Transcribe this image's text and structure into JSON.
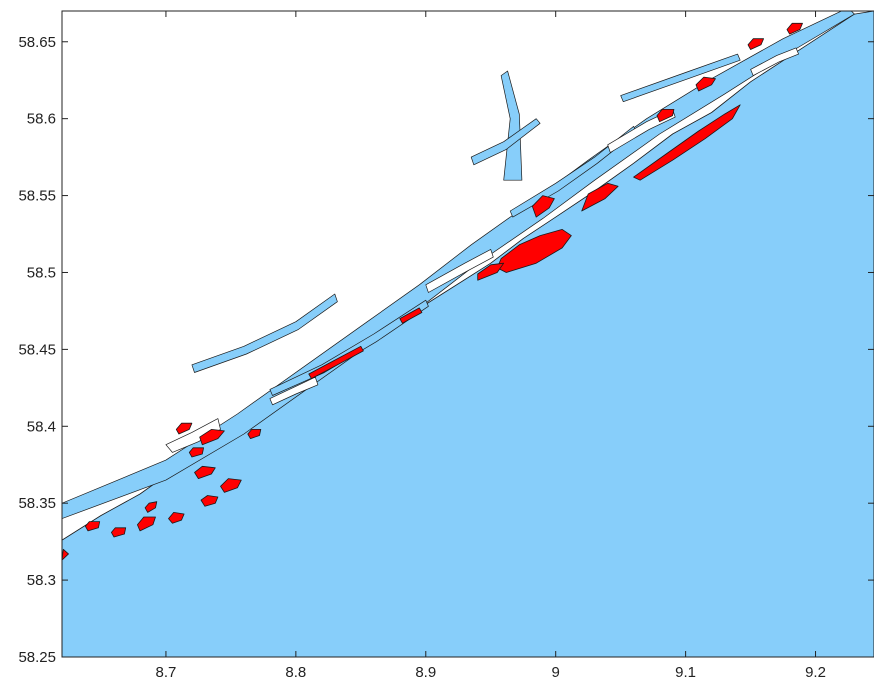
{
  "chart_data": {
    "type": "map",
    "title": "",
    "xlabel": "",
    "ylabel": "",
    "xlim": [
      8.62,
      9.245
    ],
    "ylim": [
      58.25,
      58.67
    ],
    "x_ticks": [
      8.7,
      8.8,
      8.9,
      9.0,
      9.1,
      9.2
    ],
    "x_tick_labels": [
      "8.7",
      "8.8",
      "8.9",
      "9",
      "9.1",
      "9.2"
    ],
    "y_ticks": [
      58.25,
      58.3,
      58.35,
      58.4,
      58.45,
      58.5,
      58.55,
      58.6,
      58.65
    ],
    "y_tick_labels": [
      "58.25",
      "58.3",
      "58.35",
      "58.4",
      "58.45",
      "58.5",
      "58.55",
      "58.6",
      "58.65"
    ],
    "grid": false,
    "legend": "none",
    "layers": {
      "sea": {
        "color": "#87CEFA",
        "outline": [
          [
            8.62,
            58.25
          ],
          [
            9.245,
            58.25
          ],
          [
            9.245,
            58.67
          ],
          [
            9.23,
            58.668
          ],
          [
            9.19,
            58.646
          ],
          [
            9.15,
            58.624
          ],
          [
            9.12,
            58.604
          ],
          [
            9.09,
            58.59
          ],
          [
            9.06,
            58.571
          ],
          [
            9.03,
            58.553
          ],
          [
            9.0,
            58.536
          ],
          [
            8.975,
            58.522
          ],
          [
            8.95,
            58.506
          ],
          [
            8.92,
            58.49
          ],
          [
            8.89,
            58.474
          ],
          [
            8.86,
            58.456
          ],
          [
            8.83,
            58.44
          ],
          [
            8.8,
            58.424
          ],
          [
            8.77,
            58.406
          ],
          [
            8.74,
            58.392
          ],
          [
            8.71,
            58.374
          ],
          [
            8.68,
            58.356
          ],
          [
            8.65,
            58.342
          ],
          [
            8.62,
            58.326
          ]
        ]
      },
      "inland_water": {
        "color": "#87CEFA",
        "fjords": [
          [
            [
              8.62,
              58.34
            ],
            [
              8.7,
              58.365
            ],
            [
              8.76,
              58.395
            ],
            [
              8.81,
              58.425
            ],
            [
              8.86,
              58.455
            ],
            [
              8.9,
              58.48
            ],
            [
              8.94,
              58.506
            ],
            [
              8.99,
              58.535
            ],
            [
              9.03,
              58.56
            ],
            [
              9.08,
              58.59
            ],
            [
              9.13,
              58.616
            ],
            [
              9.18,
              58.643
            ],
            [
              9.23,
              58.668
            ],
            [
              9.225,
              58.672
            ],
            [
              9.175,
              58.652
            ],
            [
              9.12,
              58.626
            ],
            [
              9.07,
              58.6
            ],
            [
              9.025,
              58.573
            ],
            [
              8.985,
              58.548
            ],
            [
              8.935,
              58.518
            ],
            [
              8.895,
              58.492
            ],
            [
              8.855,
              58.468
            ],
            [
              8.805,
              58.438
            ],
            [
              8.755,
              58.408
            ],
            [
              8.7,
              58.378
            ],
            [
              8.62,
              58.35
            ]
          ],
          [
            [
              8.96,
              58.56
            ],
            [
              8.965,
              58.6
            ],
            [
              8.958,
              58.628
            ],
            [
              8.963,
              58.631
            ],
            [
              8.972,
              58.603
            ],
            [
              8.974,
              58.56
            ]
          ],
          [
            [
              8.935,
              58.575
            ],
            [
              8.96,
              58.585
            ],
            [
              8.985,
              58.6
            ],
            [
              8.988,
              58.597
            ],
            [
              8.962,
              58.58
            ],
            [
              8.937,
              58.57
            ]
          ],
          [
            [
              8.965,
              58.54
            ],
            [
              9.0,
              58.558
            ],
            [
              9.03,
              58.575
            ],
            [
              9.06,
              58.595
            ],
            [
              9.062,
              58.591
            ],
            [
              9.032,
              58.571
            ],
            [
              9.002,
              58.553
            ],
            [
              8.967,
              58.536
            ]
          ],
          [
            [
              9.05,
              58.615
            ],
            [
              9.1,
              58.63
            ],
            [
              9.14,
              58.642
            ],
            [
              9.142,
              58.638
            ],
            [
              9.102,
              58.626
            ],
            [
              9.052,
              58.611
            ]
          ],
          [
            [
              8.72,
              58.44
            ],
            [
              8.76,
              58.452
            ],
            [
              8.8,
              58.468
            ],
            [
              8.83,
              58.486
            ],
            [
              8.832,
              58.481
            ],
            [
              8.802,
              58.463
            ],
            [
              8.762,
              58.447
            ],
            [
              8.722,
              58.435
            ]
          ],
          [
            [
              8.78,
              58.424
            ],
            [
              8.82,
              58.44
            ],
            [
              8.86,
              58.46
            ],
            [
              8.9,
              58.482
            ],
            [
              8.902,
              58.478
            ],
            [
              8.862,
              58.455
            ],
            [
              8.822,
              58.435
            ],
            [
              8.782,
              58.42
            ]
          ]
        ]
      },
      "highlighted_areas": {
        "color": "#FF0000",
        "areas": [
          [
            [
              9.06,
              58.562
            ],
            [
              9.085,
              58.577
            ],
            [
              9.11,
              58.592
            ],
            [
              9.13,
              58.603
            ],
            [
              9.142,
              58.609
            ],
            [
              9.136,
              58.6
            ],
            [
              9.115,
              58.587
            ],
            [
              9.09,
              58.573
            ],
            [
              9.065,
              58.56
            ]
          ],
          [
            [
              8.962,
              58.5
            ],
            [
              8.985,
              58.506
            ],
            [
              9.005,
              58.516
            ],
            [
              9.012,
              58.524
            ],
            [
              9.005,
              58.528
            ],
            [
              8.988,
              58.524
            ],
            [
              8.972,
              58.518
            ],
            [
              8.958,
              58.509
            ],
            [
              8.955,
              58.503
            ]
          ],
          [
            [
              8.94,
              58.495
            ],
            [
              8.955,
              58.5
            ],
            [
              8.96,
              58.506
            ],
            [
              8.95,
              58.505
            ],
            [
              8.94,
              58.499
            ]
          ],
          [
            [
              8.985,
              58.536
            ],
            [
              8.995,
              58.542
            ],
            [
              8.999,
              58.548
            ],
            [
              8.99,
              58.55
            ],
            [
              8.982,
              58.543
            ]
          ],
          [
            [
              9.02,
              58.54
            ],
            [
              9.038,
              58.548
            ],
            [
              9.048,
              58.556
            ],
            [
              9.04,
              58.558
            ],
            [
              9.025,
              58.551
            ]
          ],
          [
            [
              8.745,
              58.357
            ],
            [
              8.755,
              58.36
            ],
            [
              8.758,
              58.365
            ],
            [
              8.748,
              58.366
            ],
            [
              8.742,
              58.361
            ]
          ],
          [
            [
              8.725,
              58.366
            ],
            [
              8.735,
              58.369
            ],
            [
              8.738,
              58.373
            ],
            [
              8.728,
              58.374
            ],
            [
              8.722,
              58.37
            ]
          ],
          [
            [
              8.728,
              58.388
            ],
            [
              8.74,
              58.392
            ],
            [
              8.745,
              58.397
            ],
            [
              8.735,
              58.398
            ],
            [
              8.726,
              58.393
            ]
          ],
          [
            [
              8.73,
              58.348
            ],
            [
              8.738,
              58.35
            ],
            [
              8.74,
              58.354
            ],
            [
              8.732,
              58.355
            ],
            [
              8.727,
              58.352
            ]
          ],
          [
            [
              8.705,
              58.337
            ],
            [
              8.712,
              58.339
            ],
            [
              8.714,
              58.343
            ],
            [
              8.706,
              58.344
            ],
            [
              8.702,
              58.34
            ]
          ],
          [
            [
              8.72,
              58.38
            ],
            [
              8.728,
              58.382
            ],
            [
              8.729,
              58.386
            ],
            [
              8.721,
              58.386
            ],
            [
              8.718,
              58.383
            ]
          ],
          [
            [
              8.71,
              58.395
            ],
            [
              8.718,
              58.398
            ],
            [
              8.72,
              58.402
            ],
            [
              8.712,
              58.402
            ],
            [
              8.708,
              58.398
            ]
          ],
          [
            [
              8.765,
              58.392
            ],
            [
              8.772,
              58.394
            ],
            [
              8.773,
              58.398
            ],
            [
              8.766,
              58.398
            ],
            [
              8.763,
              58.395
            ]
          ],
          [
            [
              8.66,
              58.328
            ],
            [
              8.668,
              58.33
            ],
            [
              8.669,
              58.334
            ],
            [
              8.661,
              58.334
            ],
            [
              8.658,
              58.331
            ]
          ],
          [
            [
              8.68,
              58.332
            ],
            [
              8.69,
              58.336
            ],
            [
              8.692,
              58.341
            ],
            [
              8.683,
              58.341
            ],
            [
              8.678,
              58.336
            ]
          ],
          [
            [
              8.64,
              58.332
            ],
            [
              8.648,
              58.334
            ],
            [
              8.649,
              58.338
            ],
            [
              8.641,
              58.338
            ],
            [
              8.638,
              58.335
            ]
          ],
          [
            [
              8.686,
              58.344
            ],
            [
              8.692,
              58.347
            ],
            [
              8.693,
              58.351
            ],
            [
              8.687,
              58.35
            ],
            [
              8.684,
              58.347
            ]
          ],
          [
            [
              8.62,
              58.313
            ],
            [
              8.625,
              58.317
            ],
            [
              8.621,
              58.32
            ]
          ],
          [
            [
              8.81,
              58.434
            ],
            [
              8.83,
              58.443
            ],
            [
              8.85,
              58.452
            ],
            [
              8.852,
              58.449
            ],
            [
              8.832,
              58.44
            ],
            [
              8.812,
              58.431
            ]
          ],
          [
            [
              8.88,
              58.47
            ],
            [
              8.895,
              58.477
            ],
            [
              8.897,
              58.474
            ],
            [
              8.882,
              58.467
            ]
          ],
          [
            [
              9.11,
              58.618
            ],
            [
              9.12,
              58.622
            ],
            [
              9.123,
              58.626
            ],
            [
              9.114,
              58.627
            ],
            [
              9.108,
              58.622
            ]
          ],
          [
            [
              9.15,
              58.645
            ],
            [
              9.158,
              58.648
            ],
            [
              9.16,
              58.652
            ],
            [
              9.152,
              58.652
            ],
            [
              9.148,
              58.648
            ]
          ],
          [
            [
              9.18,
              58.655
            ],
            [
              9.188,
              58.658
            ],
            [
              9.19,
              58.662
            ],
            [
              9.182,
              58.662
            ],
            [
              9.178,
              58.658
            ]
          ],
          [
            [
              9.08,
              58.598
            ],
            [
              9.09,
              58.602
            ],
            [
              9.091,
              58.606
            ],
            [
              9.082,
              58.606
            ],
            [
              9.078,
              58.602
            ]
          ]
        ]
      },
      "islands": {
        "color": "#FFFFFF",
        "shapes": [
          [
            [
              8.7,
              58.388
            ],
            [
              8.72,
              58.396
            ],
            [
              8.74,
              58.405
            ],
            [
              8.742,
              58.398
            ],
            [
              8.725,
              58.39
            ],
            [
              8.705,
              58.383
            ]
          ],
          [
            [
              8.78,
              58.418
            ],
            [
              8.8,
              58.426
            ],
            [
              8.815,
              58.432
            ],
            [
              8.817,
              58.427
            ],
            [
              8.8,
              58.421
            ],
            [
              8.782,
              58.414
            ]
          ],
          [
            [
              8.9,
              58.492
            ],
            [
              8.93,
              58.506
            ],
            [
              8.95,
              58.515
            ],
            [
              8.952,
              58.51
            ],
            [
              8.932,
              58.501
            ],
            [
              8.902,
              58.487
            ]
          ],
          [
            [
              9.04,
              58.583
            ],
            [
              9.07,
              58.598
            ],
            [
              9.09,
              58.606
            ],
            [
              9.092,
              58.601
            ],
            [
              9.072,
              58.593
            ],
            [
              9.042,
              58.578
            ]
          ],
          [
            [
              9.15,
              58.632
            ],
            [
              9.17,
              58.641
            ],
            [
              9.185,
              58.646
            ],
            [
              9.187,
              58.642
            ],
            [
              9.172,
              58.637
            ],
            [
              9.152,
              58.628
            ]
          ]
        ]
      }
    }
  }
}
